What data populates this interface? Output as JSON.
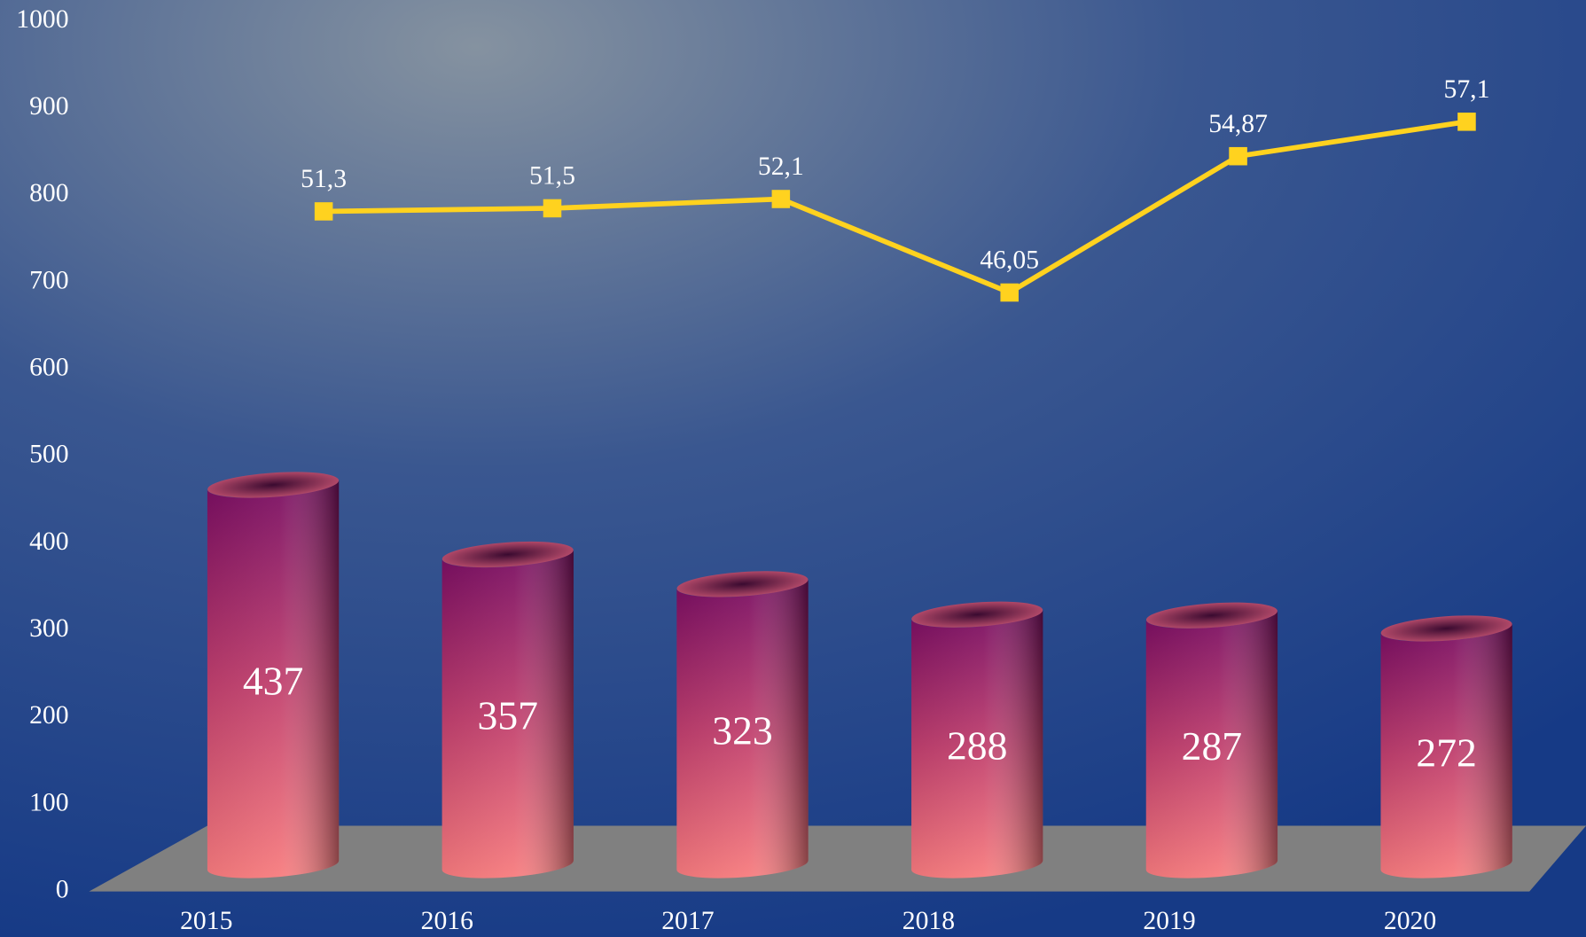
{
  "chart_data": {
    "type": "bar",
    "categories": [
      "2015",
      "2016",
      "2017",
      "2018",
      "2019",
      "2020"
    ],
    "ylim": [
      0,
      1000
    ],
    "yticks": [
      0,
      100,
      200,
      300,
      400,
      500,
      600,
      700,
      800,
      900,
      1000
    ],
    "y2lim": [
      7.3,
      63.6
    ],
    "series": [
      {
        "type": "bar",
        "color": "#c0306a",
        "values": [
          437,
          357,
          323,
          288,
          287,
          272
        ]
      },
      {
        "type": "line",
        "axis": "y2",
        "color": "#ffd21f",
        "values": [
          51.3,
          51.5,
          52.1,
          46.05,
          54.87,
          57.1
        ],
        "value_labels": [
          "51,3",
          "51,5",
          "52,1",
          "46,05",
          "54,87",
          "57,1"
        ]
      }
    ]
  }
}
